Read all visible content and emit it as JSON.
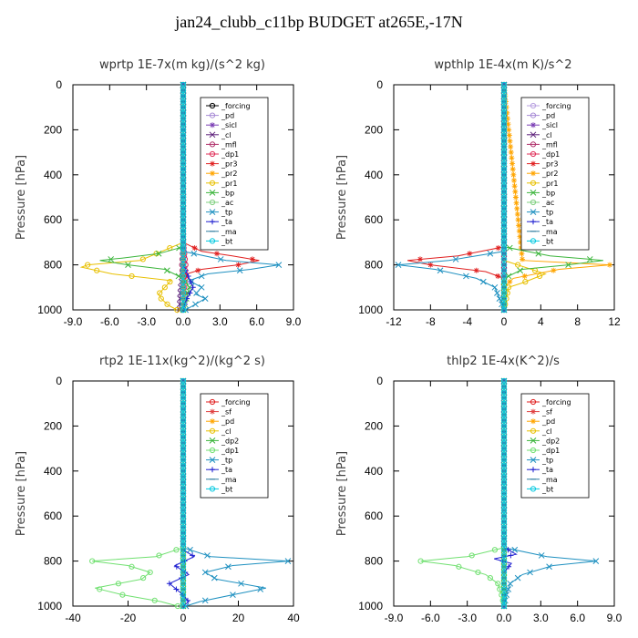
{
  "figure": {
    "title": "jan24_clubb_c11bp  BUDGET at265E,-17N"
  },
  "chart_data": [
    {
      "type": "line",
      "title": "wprtp  1E-7x(m kg)/(s^2 kg)",
      "ylabel": "Pressure [hPa]",
      "xlim": [
        -9,
        9
      ],
      "ylim": [
        1000,
        0
      ],
      "xticks": [
        "-9.0",
        "-6.0",
        "-3.0",
        "0.0",
        "3.0",
        "6.0",
        "9.0"
      ],
      "xtick_values": [
        -9,
        -6,
        -3,
        0,
        3,
        6,
        9
      ],
      "yticks": [
        "0",
        "200",
        "400",
        "600",
        "800",
        "1000"
      ],
      "ytick_values": [
        0,
        200,
        400,
        600,
        800,
        1000
      ],
      "legend_position": "top-right",
      "series": [
        {
          "name": "_forcing",
          "color": "#000000",
          "marker": "o",
          "pressure": [
            0,
            100,
            200,
            300,
            400,
            500,
            600,
            700,
            800,
            900,
            1000
          ],
          "values": [
            0,
            0,
            0,
            0,
            0,
            0,
            0,
            0,
            0,
            0,
            0
          ]
        },
        {
          "name": "_pd",
          "color": "#a78bd6",
          "marker": "o",
          "pressure": [
            0,
            500,
            1000
          ],
          "values": [
            0,
            0,
            0
          ]
        },
        {
          "name": "_sicl",
          "color": "#7b3fb5",
          "marker": "*",
          "pressure": [
            0,
            500,
            1000
          ],
          "values": [
            0,
            0,
            0
          ]
        },
        {
          "name": "_cl",
          "color": "#5c1f7a",
          "marker": "x",
          "pressure": [
            0,
            700,
            800,
            900,
            1000
          ],
          "values": [
            0,
            0,
            0.1,
            -0.2,
            -0.3
          ]
        },
        {
          "name": "_mfl",
          "color": "#b0306a",
          "marker": "o",
          "pressure": [
            0,
            700,
            800,
            900,
            1000
          ],
          "values": [
            0,
            0,
            -0.1,
            0,
            0
          ]
        },
        {
          "name": "_dp1",
          "color": "#e0305a",
          "marker": "o",
          "pressure": [
            0,
            700,
            800,
            900,
            1000
          ],
          "values": [
            0,
            0,
            0.2,
            0.1,
            0
          ]
        },
        {
          "name": "_pr3",
          "color": "#e02020",
          "marker": "*",
          "pressure": [
            0,
            700,
            740,
            760,
            780,
            800,
            820,
            840,
            870,
            1000
          ],
          "values": [
            0,
            0,
            1.5,
            4.0,
            6.2,
            4.5,
            1.5,
            0.3,
            0,
            0
          ]
        },
        {
          "name": "_pr2",
          "color": "#ffa500",
          "marker": "*",
          "pressure": [
            0,
            800,
            1000
          ],
          "values": [
            0,
            0,
            0
          ]
        },
        {
          "name": "_pr1",
          "color": "#e8c000",
          "marker": "o",
          "pressure": [
            0,
            700,
            780,
            800,
            810,
            840,
            870,
            900,
            930,
            950,
            980,
            1000
          ],
          "values": [
            0,
            0,
            -3.5,
            -7.8,
            -8.3,
            -5.8,
            -1.0,
            -1.5,
            -2.0,
            -1.8,
            -1.2,
            -0.5
          ]
        },
        {
          "name": "_bp",
          "color": "#3cb53c",
          "marker": "x",
          "pressure": [
            0,
            720,
            750,
            770,
            780,
            800,
            820,
            860,
            900,
            1000
          ],
          "values": [
            0,
            0,
            -2.0,
            -5.0,
            -6.8,
            -4.5,
            -1.5,
            0,
            0.5,
            0
          ]
        },
        {
          "name": "_ac",
          "color": "#80d080",
          "marker": "o",
          "pressure": [
            0,
            700,
            1000
          ],
          "values": [
            0,
            0,
            0
          ]
        },
        {
          "name": "_tp",
          "color": "#1e90c0",
          "marker": "x",
          "pressure": [
            0,
            740,
            780,
            800,
            820,
            840,
            870,
            900,
            930,
            950,
            1000
          ],
          "values": [
            0,
            0,
            3.5,
            7.8,
            5.5,
            2.0,
            0.5,
            1.5,
            1.0,
            1.8,
            0.2
          ]
        },
        {
          "name": "_ta",
          "color": "#2020d0",
          "marker": "+",
          "pressure": [
            0,
            800,
            860,
            900,
            950,
            1000
          ],
          "values": [
            0,
            0,
            0.5,
            0.8,
            0.3,
            0
          ]
        },
        {
          "name": "_ma",
          "color": "#2e7da0",
          "marker": "-",
          "pressure": [
            0,
            1000
          ],
          "values": [
            0,
            0
          ]
        },
        {
          "name": "_bt",
          "color": "#00c8e0",
          "marker": "o",
          "pressure": [
            0,
            1000
          ],
          "values": [
            0,
            0
          ]
        }
      ]
    },
    {
      "type": "line",
      "title": "wpthlp  1E-4x(m K)/s^2",
      "ylabel": "Pressure [hPa]",
      "xlim": [
        -12,
        12
      ],
      "ylim": [
        1000,
        0
      ],
      "xticks": [
        "-12",
        "-8",
        "-4",
        "0",
        "4",
        "8",
        "12"
      ],
      "xtick_values": [
        -12,
        -8,
        -4,
        0,
        4,
        8,
        12
      ],
      "yticks": [
        "0",
        "200",
        "400",
        "600",
        "800",
        "1000"
      ],
      "ytick_values": [
        0,
        200,
        400,
        600,
        800,
        1000
      ],
      "legend_position": "top-right",
      "series": [
        {
          "name": "_forcing",
          "color": "#b8a0e0",
          "marker": "o",
          "pressure": [
            0,
            500,
            1000
          ],
          "values": [
            0,
            0,
            0
          ]
        },
        {
          "name": "_pd",
          "color": "#a78bd6",
          "marker": "o",
          "pressure": [
            0,
            500,
            1000
          ],
          "values": [
            0,
            0,
            0
          ]
        },
        {
          "name": "_sicl",
          "color": "#7b3fb5",
          "marker": "*",
          "pressure": [
            0,
            500,
            1000
          ],
          "values": [
            0,
            0,
            0
          ]
        },
        {
          "name": "_cl",
          "color": "#5c1f7a",
          "marker": "x",
          "pressure": [
            0,
            500,
            1000
          ],
          "values": [
            0,
            0,
            0
          ]
        },
        {
          "name": "_mfl",
          "color": "#b0306a",
          "marker": "o",
          "pressure": [
            0,
            500,
            1000
          ],
          "values": [
            0,
            0,
            0
          ]
        },
        {
          "name": "_dp1",
          "color": "#e0305a",
          "marker": "o",
          "pressure": [
            0,
            500,
            1000
          ],
          "values": [
            0,
            0,
            0
          ]
        },
        {
          "name": "_pr3",
          "color": "#e02020",
          "marker": "*",
          "pressure": [
            0,
            720,
            760,
            780,
            800,
            830,
            860,
            1000
          ],
          "values": [
            0,
            0,
            -5.0,
            -10.5,
            -8.0,
            -2.0,
            0,
            0
          ]
        },
        {
          "name": "_pr2",
          "color": "#ffa500",
          "marker": "*",
          "pressure": [
            0,
            780,
            800,
            820,
            860,
            900,
            1000
          ],
          "values": [
            0,
            2.0,
            11.5,
            6.0,
            1.0,
            0,
            0
          ]
        },
        {
          "name": "_pr1",
          "color": "#e8c000",
          "marker": "o",
          "pressure": [
            0,
            780,
            840,
            880,
            900,
            1000
          ],
          "values": [
            0,
            0,
            4.5,
            2.0,
            0.5,
            0
          ]
        },
        {
          "name": "_bp",
          "color": "#3cb53c",
          "marker": "x",
          "pressure": [
            0,
            720,
            760,
            780,
            800,
            820,
            860,
            1000
          ],
          "values": [
            0,
            0,
            5.0,
            10.8,
            7.0,
            2.0,
            0,
            0
          ]
        },
        {
          "name": "_ac",
          "color": "#80d080",
          "marker": "o",
          "pressure": [
            0,
            500,
            1000
          ],
          "values": [
            0,
            0,
            0
          ]
        },
        {
          "name": "_tp",
          "color": "#1e90c0",
          "marker": "x",
          "pressure": [
            0,
            740,
            780,
            800,
            820,
            860,
            900,
            950,
            1000
          ],
          "values": [
            0,
            0,
            -6.0,
            -11.5,
            -7.5,
            -3.0,
            -1.0,
            -0.5,
            0
          ]
        },
        {
          "name": "_ta",
          "color": "#2020d0",
          "marker": "+",
          "pressure": [
            0,
            500,
            1000
          ],
          "values": [
            0,
            0,
            0
          ]
        },
        {
          "name": "_ma",
          "color": "#2e7da0",
          "marker": "-",
          "pressure": [
            0,
            1000
          ],
          "values": [
            0,
            0
          ]
        },
        {
          "name": "_bt",
          "color": "#00c8e0",
          "marker": "o",
          "pressure": [
            0,
            1000
          ],
          "values": [
            0,
            0
          ]
        }
      ]
    },
    {
      "type": "line",
      "title": "rtp2  1E-11x(kg^2)/(kg^2 s)",
      "ylabel": "Pressure [hPa]",
      "xlim": [
        -40,
        40
      ],
      "ylim": [
        1000,
        0
      ],
      "xticks": [
        "-40",
        "-20",
        "0",
        "20",
        "40"
      ],
      "xtick_values": [
        -40,
        -20,
        0,
        20,
        40
      ],
      "yticks": [
        "0",
        "200",
        "400",
        "600",
        "800",
        "1000"
      ],
      "ytick_values": [
        0,
        200,
        400,
        600,
        800,
        1000
      ],
      "legend_position": "top-right",
      "series": [
        {
          "name": "_forcing",
          "color": "#e02020",
          "marker": "o",
          "pressure": [
            0,
            500,
            1000
          ],
          "values": [
            0,
            0,
            0
          ]
        },
        {
          "name": "_sf",
          "color": "#e04040",
          "marker": "*",
          "pressure": [
            0,
            500,
            1000
          ],
          "values": [
            0,
            0,
            0
          ]
        },
        {
          "name": "_pd",
          "color": "#ffa500",
          "marker": "*",
          "pressure": [
            0,
            500,
            1000
          ],
          "values": [
            0,
            0,
            0
          ]
        },
        {
          "name": "_cl",
          "color": "#e8c000",
          "marker": "o",
          "pressure": [
            0,
            500,
            1000
          ],
          "values": [
            0,
            0,
            0
          ]
        },
        {
          "name": "_dp2",
          "color": "#3cb53c",
          "marker": "x",
          "pressure": [
            0,
            750,
            1000
          ],
          "values": [
            0,
            0,
            0
          ]
        },
        {
          "name": "_dp1",
          "color": "#70e070",
          "marker": "o",
          "pressure": [
            0,
            740,
            780,
            800,
            820,
            850,
            880,
            920,
            950,
            980,
            1000
          ],
          "values": [
            0,
            0,
            -10.0,
            -33.0,
            -20.0,
            -12.0,
            -15.0,
            -32.0,
            -22.0,
            -8.0,
            -2.0
          ]
        },
        {
          "name": "_tp",
          "color": "#1e90c0",
          "marker": "x",
          "pressure": [
            0,
            740,
            780,
            800,
            820,
            850,
            880,
            920,
            950,
            980,
            1000
          ],
          "values": [
            0,
            0,
            10.0,
            38.0,
            18.0,
            8.0,
            12.0,
            30.0,
            18.0,
            6.0,
            1.0
          ]
        },
        {
          "name": "_ta",
          "color": "#2020d0",
          "marker": "+",
          "pressure": [
            0,
            750,
            780,
            820,
            860,
            900,
            940,
            980,
            1000
          ],
          "values": [
            0,
            0,
            4.0,
            -3.0,
            2.0,
            -5.0,
            -1.0,
            2.0,
            0
          ]
        },
        {
          "name": "_ma",
          "color": "#2e7da0",
          "marker": "-",
          "pressure": [
            0,
            1000
          ],
          "values": [
            0,
            0
          ]
        },
        {
          "name": "_bt",
          "color": "#00c8e0",
          "marker": "o",
          "pressure": [
            0,
            1000
          ],
          "values": [
            0,
            0
          ]
        }
      ]
    },
    {
      "type": "line",
      "title": "thlp2  1E-4x(K^2)/s",
      "ylabel": "Pressure [hPa]",
      "xlim": [
        -9,
        9
      ],
      "ylim": [
        1000,
        0
      ],
      "xticks": [
        "-9.0",
        "-6.0",
        "-3.0",
        "0.0",
        "3.0",
        "6.0",
        "9.0"
      ],
      "xtick_values": [
        -9,
        -6,
        -3,
        0,
        3,
        6,
        9
      ],
      "yticks": [
        "0",
        "200",
        "400",
        "600",
        "800",
        "1000"
      ],
      "ytick_values": [
        0,
        200,
        400,
        600,
        800,
        1000
      ],
      "legend_position": "top-right",
      "series": [
        {
          "name": "_forcing",
          "color": "#e02020",
          "marker": "o",
          "pressure": [
            0,
            500,
            1000
          ],
          "values": [
            0,
            0,
            0
          ]
        },
        {
          "name": "_sf",
          "color": "#e04040",
          "marker": "*",
          "pressure": [
            0,
            500,
            1000
          ],
          "values": [
            0,
            0,
            0
          ]
        },
        {
          "name": "_pd",
          "color": "#ffa500",
          "marker": "*",
          "pressure": [
            0,
            500,
            1000
          ],
          "values": [
            0,
            0,
            0
          ]
        },
        {
          "name": "_cl",
          "color": "#e8c000",
          "marker": "o",
          "pressure": [
            0,
            500,
            1000
          ],
          "values": [
            0,
            0,
            0
          ]
        },
        {
          "name": "_dp2",
          "color": "#3cb53c",
          "marker": "x",
          "pressure": [
            0,
            500,
            1000
          ],
          "values": [
            0,
            0,
            0
          ]
        },
        {
          "name": "_dp1",
          "color": "#70e070",
          "marker": "o",
          "pressure": [
            0,
            740,
            780,
            800,
            820,
            860,
            900,
            950,
            1000
          ],
          "values": [
            0,
            0,
            -3.0,
            -6.8,
            -4.0,
            -1.5,
            -0.5,
            -0.2,
            0
          ]
        },
        {
          "name": "_tp",
          "color": "#1e90c0",
          "marker": "x",
          "pressure": [
            0,
            740,
            780,
            800,
            820,
            860,
            900,
            950,
            1000
          ],
          "values": [
            0,
            0,
            3.5,
            7.5,
            4.0,
            1.5,
            0.5,
            0.2,
            0
          ]
        },
        {
          "name": "_ta",
          "color": "#2020d0",
          "marker": "+",
          "pressure": [
            0,
            740,
            770,
            790,
            810,
            850,
            1000
          ],
          "values": [
            0,
            0,
            1.0,
            -0.8,
            0.6,
            0,
            0
          ]
        },
        {
          "name": "_ma",
          "color": "#2e7da0",
          "marker": "-",
          "pressure": [
            0,
            1000
          ],
          "values": [
            0,
            0
          ]
        },
        {
          "name": "_bt",
          "color": "#00c8e0",
          "marker": "o",
          "pressure": [
            0,
            1000
          ],
          "values": [
            0,
            0
          ]
        }
      ]
    }
  ]
}
